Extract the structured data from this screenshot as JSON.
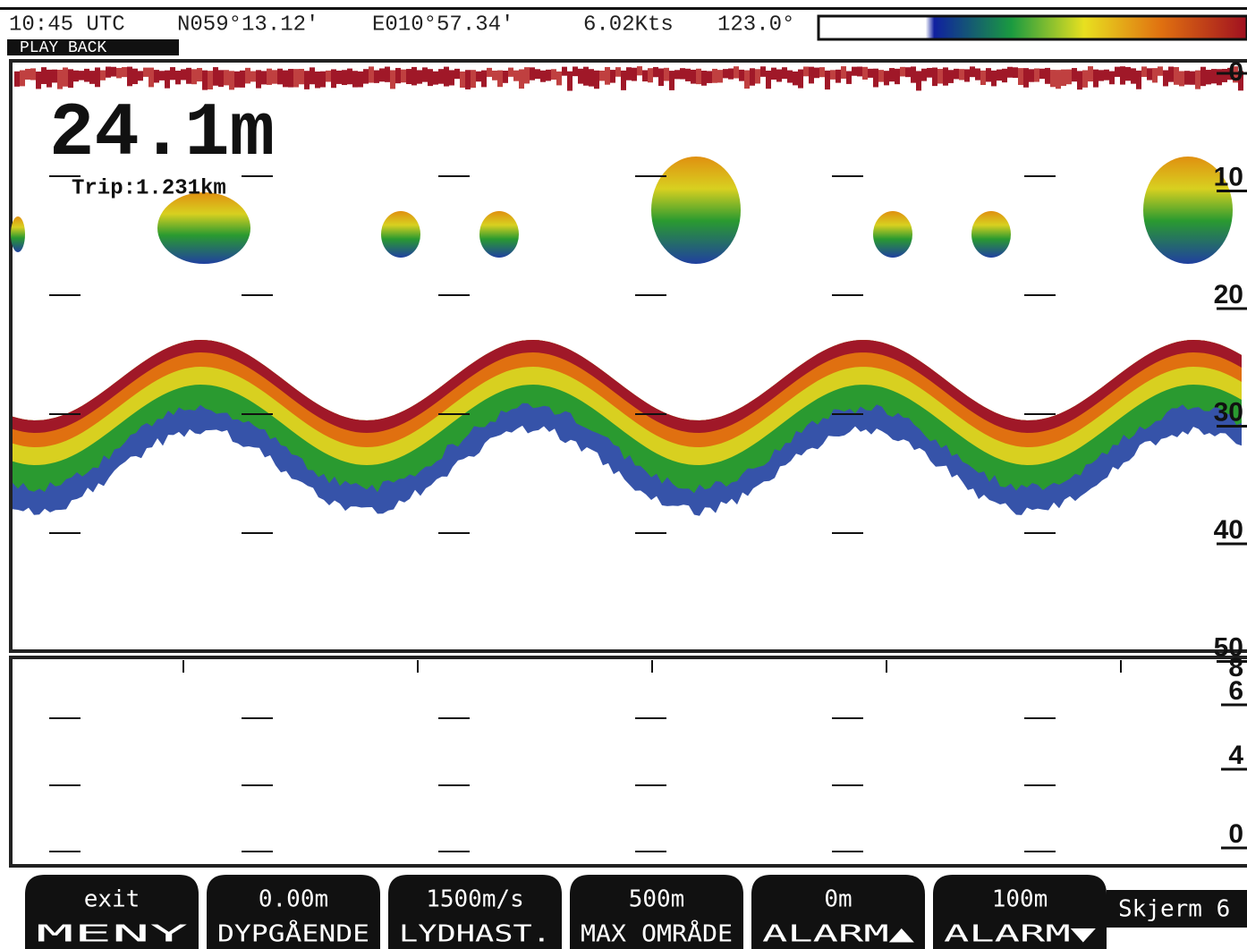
{
  "status_bar": {
    "time": "10:45 UTC",
    "latitude": "N059°13.12'",
    "longitude": "E010°57.34'",
    "speed": "6.02Kts",
    "heading": "123.0°",
    "mode": "PLAY BACK"
  },
  "depth_display": {
    "depth": "24.1m",
    "trip": "Trip:1.231km"
  },
  "depth_scale": [
    "0",
    "10",
    "20",
    "30",
    "40",
    "50"
  ],
  "lower_scale": [
    "8",
    "6",
    "4",
    "0"
  ],
  "softkeys": [
    {
      "value": "exit",
      "label": "MENY"
    },
    {
      "value": "0.00m",
      "label": "DYPGÅENDE"
    },
    {
      "value": "1500m/s",
      "label": "LYDHAST."
    },
    {
      "value": "500m",
      "label": "MAX OMRÅDE"
    },
    {
      "value": "0m",
      "label": "ALARM▲"
    },
    {
      "value": "100m",
      "label": "ALARM▼"
    }
  ],
  "screen_label": "Skjerm 6"
}
